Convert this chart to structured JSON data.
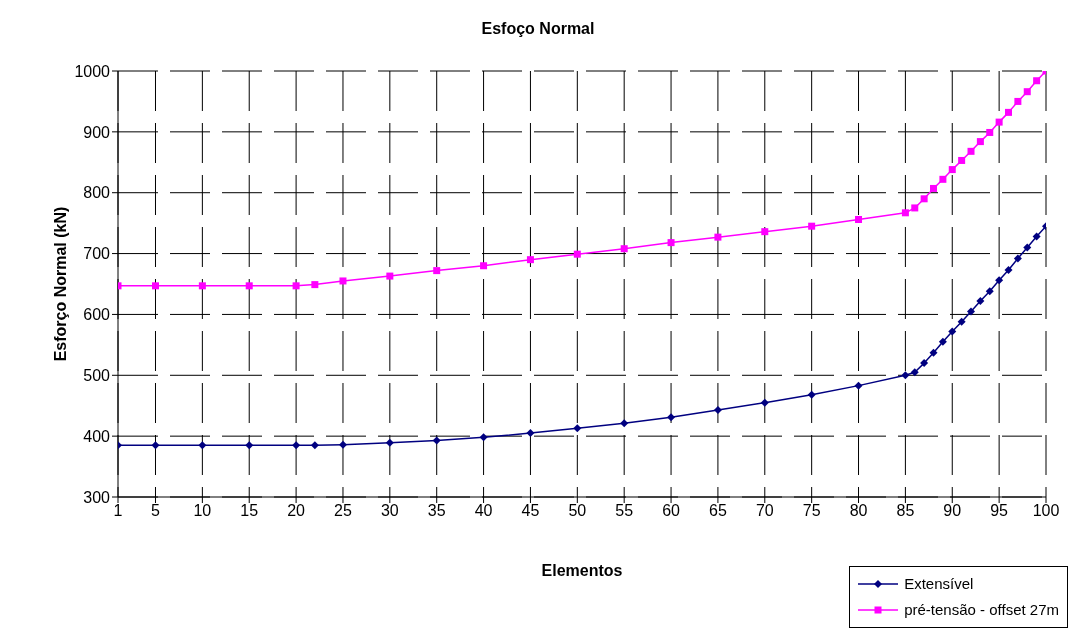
{
  "chart_data": {
    "type": "line",
    "title": "Esfoço Normal",
    "xlabel": "Elementos",
    "ylabel": "Esforço Normal (kN)",
    "x": [
      1,
      5,
      10,
      15,
      20,
      22,
      25,
      30,
      35,
      40,
      45,
      50,
      55,
      60,
      65,
      70,
      75,
      80,
      85,
      86,
      87,
      88,
      89,
      90,
      91,
      92,
      93,
      94,
      95,
      96,
      97,
      98,
      99,
      100
    ],
    "series": [
      {
        "name": "Extensível",
        "color": "#000080",
        "marker": "diamond",
        "values": [
          385,
          385,
          385,
          385,
          385,
          385,
          386,
          389,
          393,
          398,
          405,
          413,
          421,
          431,
          443,
          455,
          468,
          483,
          500,
          505,
          520,
          537,
          555,
          572,
          588,
          605,
          622,
          638,
          656,
          673,
          692,
          710,
          728,
          745
        ]
      },
      {
        "name": "pré-tensão - offset 27m",
        "color": "#ff00ff",
        "marker": "square",
        "values": [
          647,
          647,
          647,
          647,
          647,
          649,
          655,
          663,
          672,
          680,
          690,
          699,
          708,
          718,
          727,
          736,
          745,
          756,
          767,
          775,
          790,
          807,
          822,
          838,
          853,
          868,
          884,
          899,
          916,
          932,
          950,
          966,
          984,
          1000
        ]
      }
    ],
    "xlim": [
      1,
      100
    ],
    "xticks": [
      1,
      5,
      10,
      15,
      20,
      25,
      30,
      35,
      40,
      45,
      50,
      55,
      60,
      65,
      70,
      75,
      80,
      85,
      90,
      95,
      100
    ],
    "ylim": [
      300,
      1000
    ],
    "yticks": [
      300,
      400,
      500,
      600,
      700,
      800,
      900,
      1000
    ],
    "grid": true,
    "legend": "bottom right",
    "line_style": "solid"
  }
}
